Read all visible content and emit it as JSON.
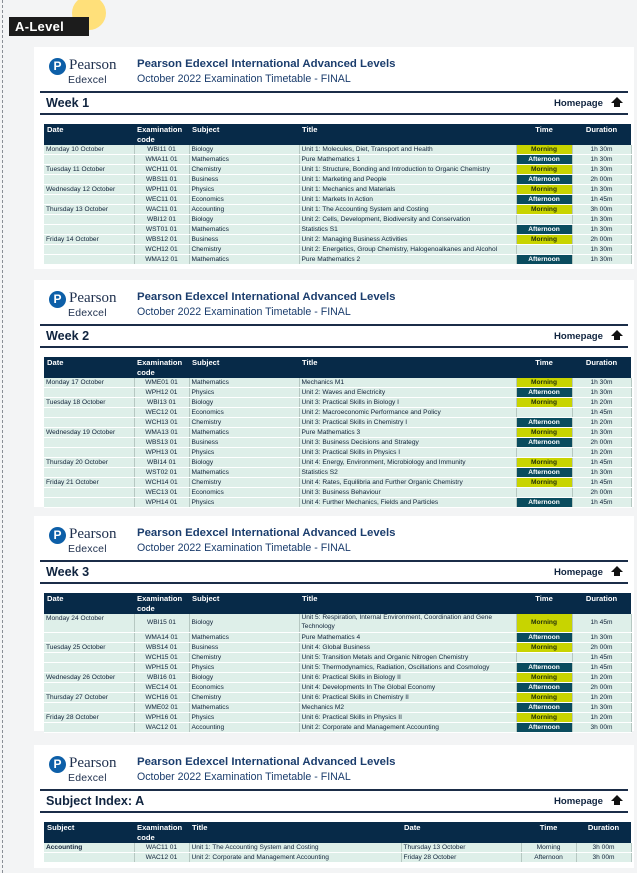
{
  "page_label": "A-Level",
  "header": {
    "logo_top": "Pearson",
    "logo_bottom": "Edexcel",
    "title": "Pearson Edexcel International Advanced Levels",
    "subtitle": "October 2022 Examination Timetable - FINAL"
  },
  "homepage_label": "Homepage",
  "columns": [
    "Date",
    "Examination code",
    "Subject",
    "Title",
    "Time",
    "Duration"
  ],
  "index_columns": [
    "Subject",
    "Examination code",
    "Title",
    "Date",
    "Time",
    "Duration"
  ],
  "weeks": [
    {
      "title": "Week 1",
      "rows": [
        {
          "date": "Monday 10 October",
          "code": "WBI11 01",
          "subject": "Biology",
          "title": "Unit 1: Molecules, Diet, Transport and Health",
          "time": "Morning",
          "duration": "1h 30m"
        },
        {
          "date": "",
          "code": "WMA11 01",
          "subject": "Mathematics",
          "title": "Pure Mathematics 1",
          "time": "Afternoon",
          "duration": "1h 30m"
        },
        {
          "date": "Tuesday 11 October",
          "code": "WCH11 01",
          "subject": "Chemistry",
          "title": "Unit 1: Structure, Bonding and Introduction to Organic Chemistry",
          "time": "Morning",
          "duration": "1h 30m"
        },
        {
          "date": "",
          "code": "WBS11 01",
          "subject": "Business",
          "title": "Unit 1: Marketing and People",
          "time": "Afternoon",
          "duration": "2h 00m"
        },
        {
          "date": "Wednesday 12 October",
          "code": "WPH11 01",
          "subject": "Physics",
          "title": "Unit 1: Mechanics and Materials",
          "time": "Morning",
          "duration": "1h 30m"
        },
        {
          "date": "",
          "code": "WEC11 01",
          "subject": "Economics",
          "title": "Unit 1: Markets In Action",
          "time": "Afternoon",
          "duration": "1h 45m"
        },
        {
          "date": "Thursday 13 October",
          "code": "WAC11 01",
          "subject": "Accounting",
          "title": "Unit 1: The Accounting System and Costing",
          "time": "Morning",
          "duration": "3h 00m"
        },
        {
          "date": "",
          "code": "WBI12 01",
          "subject": "Biology",
          "title": "Unit 2: Cells, Development, Biodiversity and Conservation",
          "time": "",
          "duration": "1h 30m"
        },
        {
          "date": "",
          "code": "WST01 01",
          "subject": "Mathematics",
          "title": "Statistics S1",
          "time": "Afternoon",
          "duration": "1h 30m"
        },
        {
          "date": "Friday 14 October",
          "code": "WBS12 01",
          "subject": "Business",
          "title": "Unit 2: Managing Business Activities",
          "time": "Morning",
          "duration": "2h 00m"
        },
        {
          "date": "",
          "code": "WCH12 01",
          "subject": "Chemistry",
          "title": "Unit 2: Energetics, Group Chemistry, Halogenoalkanes and Alcohol",
          "time": "",
          "duration": "1h 30m"
        },
        {
          "date": "",
          "code": "WMA12 01",
          "subject": "Mathematics",
          "title": "Pure Mathematics 2",
          "time": "Afternoon",
          "duration": "1h 30m"
        }
      ]
    },
    {
      "title": "Week 2",
      "rows": [
        {
          "date": "Monday 17 October",
          "code": "WME01 01",
          "subject": "Mathematics",
          "title": "Mechanics M1",
          "time": "Morning",
          "duration": "1h 30m"
        },
        {
          "date": "",
          "code": "WPH12 01",
          "subject": "Physics",
          "title": "Unit 2: Waves and Electricity",
          "time": "Afternoon",
          "duration": "1h 30m"
        },
        {
          "date": "Tuesday 18 October",
          "code": "WBI13 01",
          "subject": "Biology",
          "title": "Unit 3: Practical Skills in Biology I",
          "time": "Morning",
          "duration": "1h 20m"
        },
        {
          "date": "",
          "code": "WEC12 01",
          "subject": "Economics",
          "title": "Unit 2: Macroeconomic Performance and Policy",
          "time": "",
          "duration": "1h 45m"
        },
        {
          "date": "",
          "code": "WCH13 01",
          "subject": "Chemistry",
          "title": "Unit 3: Practical Skills in Chemistry I",
          "time": "Afternoon",
          "duration": "1h 20m"
        },
        {
          "date": "Wednesday 19 October",
          "code": "WMA13 01",
          "subject": "Mathematics",
          "title": "Pure Mathematics 3",
          "time": "Morning",
          "duration": "1h 30m"
        },
        {
          "date": "",
          "code": "WBS13 01",
          "subject": "Business",
          "title": "Unit 3: Business Decisions and Strategy",
          "time": "Afternoon",
          "duration": "2h 00m"
        },
        {
          "date": "",
          "code": "WPH13 01",
          "subject": "Physics",
          "title": "Unit 3: Practical Skills in Physics I",
          "time": "",
          "duration": "1h 20m"
        },
        {
          "date": "Thursday 20 October",
          "code": "WBI14 01",
          "subject": "Biology",
          "title": "Unit 4: Energy, Environment, Microbiology and Immunity",
          "time": "Morning",
          "duration": "1h 45m"
        },
        {
          "date": "",
          "code": "WST02 01",
          "subject": "Mathematics",
          "title": "Statistics S2",
          "time": "Afternoon",
          "duration": "1h 30m"
        },
        {
          "date": "Friday 21 October",
          "code": "WCH14 01",
          "subject": "Chemistry",
          "title": "Unit 4: Rates, Equilibria and Further Organic Chemistry",
          "time": "Morning",
          "duration": "1h 45m"
        },
        {
          "date": "",
          "code": "WEC13 01",
          "subject": "Economics",
          "title": "Unit 3: Business Behaviour",
          "time": "",
          "duration": "2h 00m"
        },
        {
          "date": "",
          "code": "WPH14 01",
          "subject": "Physics",
          "title": "Unit 4: Further Mechanics, Fields and Particles",
          "time": "Afternoon",
          "duration": "1h 45m"
        }
      ]
    },
    {
      "title": "Week 3",
      "rows": [
        {
          "date": "Monday 24 October",
          "code": "WBI15 01",
          "subject": "Biology",
          "title": "Unit 5: Respiration, Internal Environment, Coordination and Gene Technology",
          "time": "Morning",
          "duration": "1h 45m"
        },
        {
          "date": "",
          "code": "WMA14 01",
          "subject": "Mathematics",
          "title": "Pure Mathematics 4",
          "time": "Afternoon",
          "duration": "1h 30m"
        },
        {
          "date": "Tuesday 25 October",
          "code": "WBS14 01",
          "subject": "Business",
          "title": "Unit 4: Global Business",
          "time": "Morning",
          "duration": "2h 00m"
        },
        {
          "date": "",
          "code": "WCH15 01",
          "subject": "Chemistry",
          "title": "Unit 5: Transition Metals and Organic Nitrogen Chemistry",
          "time": "",
          "duration": "1h 45m"
        },
        {
          "date": "",
          "code": "WPH15 01",
          "subject": "Physics",
          "title": "Unit 5: Thermodynamics, Radiation, Oscillations and Cosmology",
          "time": "Afternoon",
          "duration": "1h 45m"
        },
        {
          "date": "Wednesday 26 October",
          "code": "WBI16 01",
          "subject": "Biology",
          "title": "Unit 6: Practical Skills in Biology II",
          "time": "Morning",
          "duration": "1h 20m"
        },
        {
          "date": "",
          "code": "WEC14 01",
          "subject": "Economics",
          "title": "Unit 4: Developments In The Global Economy",
          "time": "Afternoon",
          "duration": "2h 00m"
        },
        {
          "date": "Thursday 27 October",
          "code": "WCH16 01",
          "subject": "Chemistry",
          "title": "Unit 6: Practical Skills in Chemistry II",
          "time": "Morning",
          "duration": "1h 20m"
        },
        {
          "date": "",
          "code": "WME02 01",
          "subject": "Mathematics",
          "title": "Mechanics M2",
          "time": "Afternoon",
          "duration": "1h 30m"
        },
        {
          "date": "Friday 28 October",
          "code": "WPH16 01",
          "subject": "Physics",
          "title": "Unit 6: Practical Skills in Physics II",
          "time": "Morning",
          "duration": "1h 20m"
        },
        {
          "date": "",
          "code": "WAC12 01",
          "subject": "Accounting",
          "title": "Unit 2: Corporate and Management Accounting",
          "time": "Afternoon",
          "duration": "3h 00m"
        }
      ]
    }
  ],
  "subject_index": {
    "title": "Subject Index: A",
    "rows": [
      {
        "subject": "Accounting",
        "code": "WAC11 01",
        "title": "Unit 1: The Accounting System and Costing",
        "date": "Thursday 13 October",
        "time": "Morning",
        "duration": "3h 00m"
      },
      {
        "subject": "",
        "code": "WAC12 01",
        "title": "Unit 2: Corporate and Management Accounting",
        "date": "Friday 28 October",
        "time": "Afternoon",
        "duration": "3h 00m"
      }
    ]
  }
}
